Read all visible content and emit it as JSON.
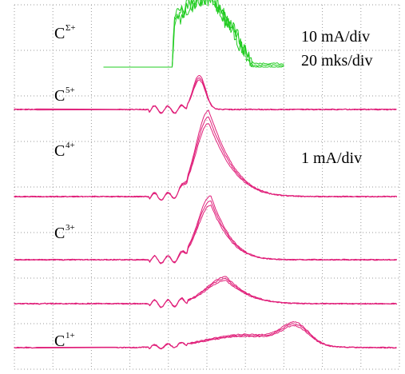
{
  "chart_data": {
    "type": "line",
    "scales": {
      "upper": "10 mA/div",
      "time": "20 mks/div",
      "lower": "1 mA/div"
    },
    "colors": {
      "total_trace": "#22cc22",
      "ion_traces": "#e0207a"
    },
    "grid": true,
    "x_divisions": 10,
    "y_divisions": 8,
    "sweeps_per_channel": 3,
    "channels": [
      {
        "label_base": "C",
        "label_sup": "Σ+",
        "color": "#22cc22",
        "amplitude_div": 1.5,
        "pulse": {
          "rise_div": 4.1,
          "flat_div": 1.1,
          "decay_div": 1.0,
          "noise": 0.18
        }
      },
      {
        "label_base": "C",
        "label_sup": "5+",
        "color": "#e0207a",
        "amplitude_div": 0.7,
        "pulse": {
          "center_div": 4.8,
          "width_div": 0.16
        }
      },
      {
        "label_base": "C",
        "label_sup": "4+",
        "color": "#e0207a",
        "amplitude_div": 1.75,
        "pulse": {
          "center_div": 5.05,
          "width_div": 0.33,
          "tail_div": 0.75
        }
      },
      {
        "label_base": "C",
        "label_sup": "3+",
        "color": "#e0207a",
        "amplitude_div": 1.3,
        "pulse": {
          "center_div": 5.1,
          "width_div": 0.33,
          "tail_div": 0.6
        }
      },
      {
        "label_base": "",
        "label_sup": "",
        "color": "#e0207a",
        "amplitude_div": 0.55,
        "pulse": {
          "center_div": 5.5,
          "width_div": 0.5,
          "tail_div": 0.7
        }
      },
      {
        "label_base": "C",
        "label_sup": "1+",
        "color": "#e0207a",
        "amplitude_div": 0.3,
        "pulse": {
          "center_div": 6.0,
          "width_div": 1.0,
          "second_center_div": 7.3,
          "second_amp_div": 0.4
        }
      }
    ]
  }
}
